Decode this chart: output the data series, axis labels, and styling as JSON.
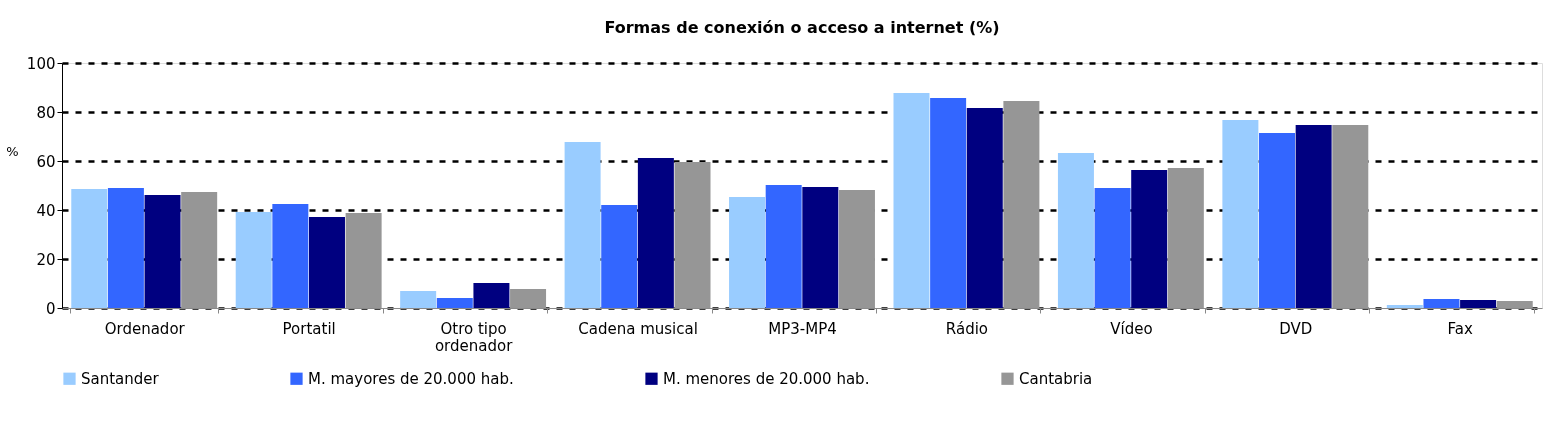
{
  "chart_data": {
    "type": "bar",
    "title": "Formas de conexión o acceso a internet (%)",
    "ylabel": "%",
    "categories": [
      "Ordenador",
      "Portatil",
      "Otro tipo ordenador",
      "Cadena musical",
      "MP3-MP4",
      "Rádio",
      "Vídeo",
      "DVD",
      "Fax"
    ],
    "series": [
      {
        "name": "Santander",
        "color": "#99ccff",
        "values": [
          48.6,
          39.2,
          6.9,
          67.8,
          45.3,
          87.8,
          63.3,
          76.7,
          1.2
        ]
      },
      {
        "name": "M. mayores de 20.000 hab.",
        "color": "#3366ff",
        "values": [
          49.0,
          42.4,
          4.1,
          42.0,
          50.2,
          85.7,
          49.0,
          71.4,
          3.7
        ]
      },
      {
        "name": "M. menores de 20.000 hab.",
        "color": "#000080",
        "values": [
          46.1,
          37.1,
          10.2,
          61.2,
          49.4,
          81.6,
          56.3,
          74.7,
          3.3
        ]
      },
      {
        "name": "Cantabria",
        "color": "#969696",
        "values": [
          47.3,
          38.8,
          7.8,
          59.6,
          48.2,
          84.5,
          57.1,
          74.7,
          2.9
        ]
      }
    ],
    "ylim": [
      0,
      100
    ],
    "yticks": [
      0,
      20,
      40,
      60,
      80,
      100
    ],
    "grid": "y",
    "legend": "bottom"
  }
}
